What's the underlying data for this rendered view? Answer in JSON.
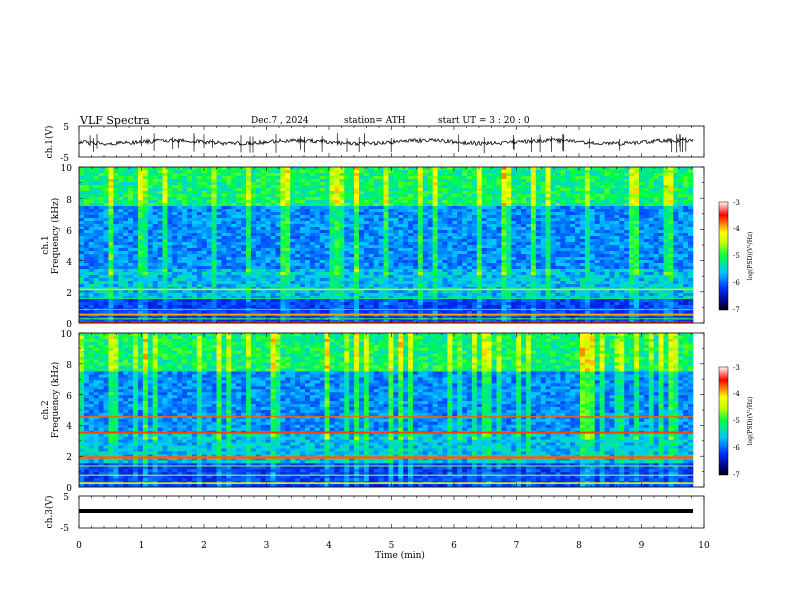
{
  "header": {
    "title": "VLF  Spectra",
    "date": "Dec.7  , 2024",
    "station": "station= ATH",
    "start": "start  UT  =   3  : 20 : 0"
  },
  "colorbar": {
    "label": "log(PSD)(V²/Hz)",
    "ticks": [
      "-3",
      "-4",
      "-5",
      "-6",
      "-7"
    ]
  },
  "chart_data": [
    {
      "id": "ch1-waveform",
      "type": "line",
      "ylabel": "ch.1(V)",
      "ylim": [
        -5,
        5
      ],
      "yticks": [
        "5",
        "-5"
      ],
      "xlim": [
        0,
        10
      ]
    },
    {
      "id": "ch1-spectrogram",
      "type": "heatmap",
      "ylabel_top": "ch.1",
      "ylabel": "Frequency  (kHz)",
      "ylim": [
        0,
        10
      ],
      "yticks": [
        "10",
        "8",
        "6",
        "4",
        "2",
        "0"
      ],
      "xlim": [
        0,
        10
      ],
      "color_range": [
        -7,
        -3
      ]
    },
    {
      "id": "ch2-spectrogram",
      "type": "heatmap",
      "ylabel_top": "ch.2",
      "ylabel": "Frequency  (kHz)",
      "ylim": [
        0,
        10
      ],
      "yticks": [
        "10",
        "8",
        "6",
        "4",
        "2",
        "0"
      ],
      "xlim": [
        0,
        10
      ],
      "color_range": [
        -7,
        -3
      ]
    },
    {
      "id": "ch3-waveform",
      "type": "line",
      "ylabel": "ch.3(V)",
      "ylim": [
        -5,
        5
      ],
      "yticks": [
        "5",
        "-5"
      ],
      "xlim": [
        0,
        10
      ]
    }
  ],
  "xaxis": {
    "label": "Time  (min)",
    "ticks": [
      "0",
      "1",
      "2",
      "3",
      "4",
      "5",
      "6",
      "7",
      "8",
      "9",
      "10"
    ]
  }
}
